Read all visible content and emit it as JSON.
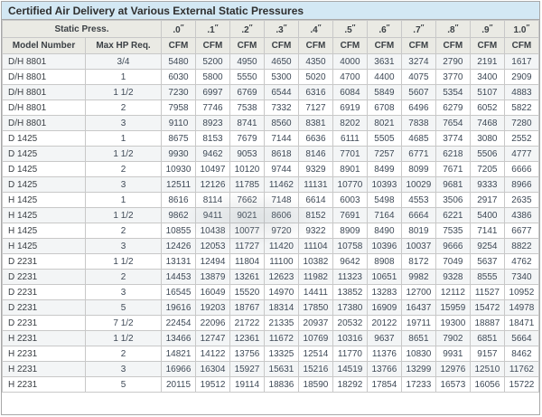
{
  "title": "Certified Air Delivery at Various External Static Pressures",
  "table": {
    "static_press_label": "Static Press.",
    "col1_header": "Model Number",
    "col2_header": "Max HP Req.",
    "unit_label": "CFM",
    "inch_mark": "″",
    "pressure_headers": [
      ".0",
      ".1",
      ".2",
      ".3",
      ".4",
      ".5",
      ".6",
      ".7",
      ".8",
      ".9",
      "1.0"
    ],
    "rows": [
      {
        "model": "D/H 8801",
        "hp": "3/4",
        "cfm": [
          5480,
          5200,
          4950,
          4650,
          4350,
          4000,
          3631,
          3274,
          2790,
          2191,
          1617
        ]
      },
      {
        "model": "D/H 8801",
        "hp": "1",
        "cfm": [
          6030,
          5800,
          5550,
          5300,
          5020,
          4700,
          4400,
          4075,
          3770,
          3400,
          2909
        ]
      },
      {
        "model": "D/H 8801",
        "hp": "1 1/2",
        "cfm": [
          7230,
          6997,
          6769,
          6544,
          6316,
          6084,
          5849,
          5607,
          5354,
          5107,
          4883
        ]
      },
      {
        "model": "D/H 8801",
        "hp": "2",
        "cfm": [
          7958,
          7746,
          7538,
          7332,
          7127,
          6919,
          6708,
          6496,
          6279,
          6052,
          5822
        ]
      },
      {
        "model": "D/H 8801",
        "hp": "3",
        "cfm": [
          9110,
          8923,
          8741,
          8560,
          8381,
          8202,
          8021,
          7838,
          7654,
          7468,
          7280
        ]
      },
      {
        "model": "D 1425",
        "hp": "1",
        "cfm": [
          8675,
          8153,
          7679,
          7144,
          6636,
          6111,
          5505,
          4685,
          3774,
          3080,
          2552
        ]
      },
      {
        "model": "D 1425",
        "hp": "1 1/2",
        "cfm": [
          9930,
          9462,
          9053,
          8618,
          8146,
          7701,
          7257,
          6771,
          6218,
          5506,
          4777
        ]
      },
      {
        "model": "D 1425",
        "hp": "2",
        "cfm": [
          10930,
          10497,
          10120,
          9744,
          9329,
          8901,
          8499,
          8099,
          7671,
          7205,
          6666
        ]
      },
      {
        "model": "D 1425",
        "hp": "3",
        "cfm": [
          12511,
          12126,
          11785,
          11462,
          11131,
          10770,
          10393,
          10029,
          9681,
          9333,
          8966
        ]
      },
      {
        "model": "H 1425",
        "hp": "1",
        "cfm": [
          8616,
          8114,
          7662,
          7148,
          6614,
          6003,
          5498,
          4553,
          3506,
          2917,
          2635
        ]
      },
      {
        "model": "H 1425",
        "hp": "1 1/2",
        "cfm": [
          9862,
          9411,
          9021,
          8606,
          8152,
          7691,
          7164,
          6664,
          6221,
          5400,
          4386
        ]
      },
      {
        "model": "H 1425",
        "hp": "2",
        "cfm": [
          10855,
          10438,
          10077,
          9720,
          9322,
          8909,
          8490,
          8019,
          7535,
          7141,
          6677
        ]
      },
      {
        "model": "H 1425",
        "hp": "3",
        "cfm": [
          12426,
          12053,
          11727,
          11420,
          11104,
          10758,
          10396,
          10037,
          9666,
          9254,
          8822
        ]
      },
      {
        "model": "D 2231",
        "hp": "1 1/2",
        "cfm": [
          13131,
          12494,
          11804,
          11100,
          10382,
          9642,
          8908,
          8172,
          7049,
          5637,
          4762
        ]
      },
      {
        "model": "D 2231",
        "hp": "2",
        "cfm": [
          14453,
          13879,
          13261,
          12623,
          11982,
          11323,
          10651,
          9982,
          9328,
          8555,
          7340
        ]
      },
      {
        "model": "D 2231",
        "hp": "3",
        "cfm": [
          16545,
          16049,
          15520,
          14970,
          14411,
          13852,
          13283,
          12700,
          12112,
          11527,
          10952
        ]
      },
      {
        "model": "D 2231",
        "hp": "5",
        "cfm": [
          19616,
          19203,
          18767,
          18314,
          17850,
          17380,
          16909,
          16437,
          15959,
          15472,
          14978
        ]
      },
      {
        "model": "D 2231",
        "hp": "7 1/2",
        "cfm": [
          22454,
          22096,
          21722,
          21335,
          20937,
          20532,
          20122,
          19711,
          19300,
          18887,
          18471
        ]
      },
      {
        "model": "H 2231",
        "hp": "1 1/2",
        "cfm": [
          13466,
          12747,
          12361,
          11672,
          10769,
          10316,
          9637,
          8651,
          7902,
          6851,
          5664
        ]
      },
      {
        "model": "H 2231",
        "hp": "2",
        "cfm": [
          14821,
          14122,
          13756,
          13325,
          12514,
          11770,
          11376,
          10830,
          9931,
          9157,
          8462
        ]
      },
      {
        "model": "H 2231",
        "hp": "3",
        "cfm": [
          16966,
          16304,
          15927,
          15631,
          15216,
          14519,
          13766,
          13299,
          12976,
          12510,
          11762
        ]
      },
      {
        "model": "H 2231",
        "hp": "5",
        "cfm": [
          20115,
          19512,
          19114,
          18836,
          18590,
          18292,
          17854,
          17233,
          16573,
          16056,
          15722
        ]
      }
    ]
  },
  "colors": {
    "title_bg": "#d3e8f4",
    "title_text": "#2f2f2f",
    "header_bg": "#eaeae4",
    "header_text": "#3b4045",
    "border_outer": "#a8a8a8",
    "border_cell": "#c8c8c8",
    "row_alt_bg": "#f3f5f6",
    "data_text": "#3e4956",
    "model_text": "#3a3f44"
  }
}
